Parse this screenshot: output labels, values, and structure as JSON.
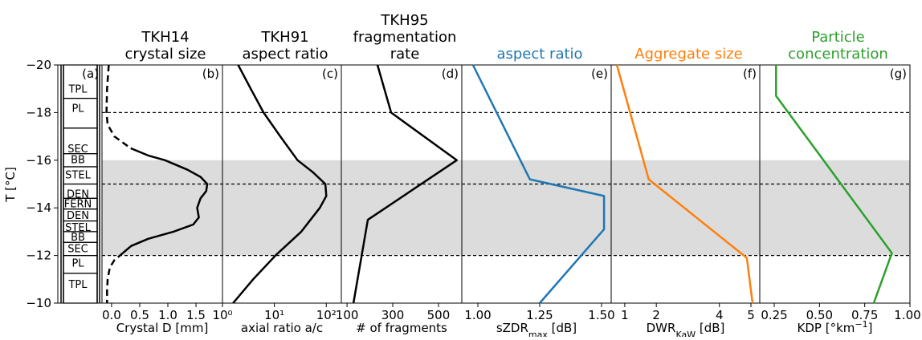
{
  "chart_data": {
    "type": "profile-panels",
    "ylabel": "T [°C]",
    "ylim": [
      -20,
      -10
    ],
    "y_inverted": true,
    "yticks": [
      {
        "value": -20,
        "label": "−20"
      },
      {
        "value": -18,
        "label": "−18"
      },
      {
        "value": -16,
        "label": "−16"
      },
      {
        "value": -14,
        "label": "−14"
      },
      {
        "value": -12,
        "label": "−12"
      },
      {
        "value": -10,
        "label": "−10"
      }
    ],
    "shading": [
      -16,
      -12
    ],
    "dashed_lines": [
      -18,
      -15,
      -12
    ],
    "panels": [
      {
        "letter": "(a)",
        "habits": {
          "labels": [
            "TPL",
            "PL",
            "SEC",
            "BB",
            "STEL",
            "DEN",
            "FERN",
            "DEN",
            "STEL",
            "BB",
            "SEC",
            "PL",
            "TPL"
          ],
          "temps": [
            -19.0,
            -18.2,
            -16.5,
            -16.05,
            -15.4,
            -14.6,
            -14.2,
            -13.7,
            -13.2,
            -12.8,
            -12.3,
            -11.7,
            -10.8
          ]
        }
      },
      {
        "letter": "(b)",
        "title": [
          "TKH14",
          "crystal size"
        ],
        "title_color": "#000000",
        "xlabel": [
          {
            "text": "Crystal D [mm]"
          }
        ],
        "xlim": [
          -0.17,
          1.97
        ],
        "xticks": [
          {
            "value": 0,
            "label": "0.0"
          },
          0.5,
          {
            "value": 1,
            "label": "1.0"
          },
          1.5
        ],
        "lines": [
          {
            "color": "#000000",
            "style": "dashed",
            "y": [
              -20,
              -19,
              -18,
              -17.5,
              -17,
              -16.5
            ],
            "values": [
              -0.05,
              -0.08,
              -0.09,
              -0.07,
              0.05,
              0.34
            ]
          },
          {
            "color": "#000000",
            "style": "solid",
            "y": [
              -16.5,
              -16.2,
              -16,
              -15.6,
              -15.3,
              -15,
              -14.7,
              -14.4,
              -14,
              -13.6,
              -13.3,
              -13,
              -12.7,
              -12.4,
              -12.1
            ],
            "values": [
              0.34,
              0.65,
              0.95,
              1.35,
              1.58,
              1.7,
              1.68,
              1.58,
              1.52,
              1.55,
              1.45,
              1.1,
              0.65,
              0.35,
              0.2
            ]
          },
          {
            "color": "#000000",
            "style": "dashed",
            "y": [
              -12.1,
              -11.8,
              -11.5,
              -11,
              -10.5,
              -10
            ],
            "values": [
              0.2,
              0.05,
              -0.03,
              -0.07,
              -0.08,
              -0.08
            ]
          }
        ]
      },
      {
        "letter": "(c)",
        "title": [
          "TKH91",
          "aspect ratio"
        ],
        "title_color": "#000000",
        "xlabel": [
          {
            "text": "axial ratio a/c"
          }
        ],
        "log": true,
        "xlim": [
          1,
          195
        ],
        "xticks": [
          {
            "value": 1,
            "label": "10⁰"
          },
          {
            "value": 10,
            "label": "10¹"
          },
          {
            "value": 100,
            "label": "10²"
          }
        ],
        "lines": [
          {
            "color": "#000000",
            "style": "solid",
            "y": [
              -20,
              -19,
              -18,
              -17,
              -16,
              -15.5,
              -15,
              -14.5,
              -14,
              -13,
              -12,
              -11,
              -10
            ],
            "values": [
              2.0,
              3.5,
              6.2,
              13,
              28,
              55,
              96,
              100,
              75,
              33,
              10.5,
              3.9,
              1.6
            ]
          }
        ]
      },
      {
        "letter": "(d)",
        "title": [
          "TKH95",
          "fragmentation",
          "rate"
        ],
        "title_color": "#000000",
        "xlabel": [
          {
            "text": "# of fragments"
          }
        ],
        "xlim": [
          75,
          602
        ],
        "xticks": [
          100,
          300,
          500
        ],
        "lines": [
          {
            "color": "#000000",
            "style": "solid",
            "y": [
              -20,
              -18,
              -16,
              -13.5,
              -10
            ],
            "values": [
              233,
              293,
              580,
              191,
              128
            ]
          }
        ]
      },
      {
        "letter": "(e)",
        "title": [
          "aspect ratio"
        ],
        "title_color": "#1f77b4",
        "xlabel": [
          {
            "text": "sZDR"
          },
          {
            "text": "max",
            "shift": "sub"
          },
          {
            "text": " [dB]"
          }
        ],
        "xlim": [
          0.935,
          1.539
        ],
        "xticks": [
          {
            "value": 1,
            "label": "1.00"
          },
          1.25,
          {
            "value": 1.5,
            "label": "1.50"
          }
        ],
        "lines": [
          {
            "color": "#1f77b4",
            "style": "solid",
            "y": [
              -20,
              -15.2,
              -14.5,
              -13.1,
              -10
            ],
            "values": [
              0.98,
              1.21,
              1.51,
              1.51,
              1.25
            ]
          }
        ]
      },
      {
        "letter": "(f)",
        "title": [
          "Aggregate size"
        ],
        "title_color": "#ff7f0e",
        "xlabel": [
          {
            "text": "DWR"
          },
          {
            "text": "KaW",
            "shift": "sub"
          },
          {
            "text": " [dB]"
          }
        ],
        "xlim": [
          0.57,
          5.28
        ],
        "xticks": [
          1,
          2,
          4,
          5
        ],
        "lines": [
          {
            "color": "#ff7f0e",
            "style": "solid",
            "y": [
              -20,
              -15.2,
              -11.9,
              -10
            ],
            "values": [
              0.75,
              1.76,
              4.87,
              5.05
            ]
          }
        ]
      },
      {
        "letter": "(g)",
        "title": [
          "Particle",
          "concentration"
        ],
        "title_color": "#2ca02c",
        "xlabel": [
          {
            "text": "KDP [°km"
          },
          {
            "text": "−1",
            "shift": "super"
          },
          {
            "text": "]"
          }
        ],
        "xlim": [
          0.17,
          1.0
        ],
        "xticks": [
          0.25,
          {
            "value": 0.5,
            "label": "0.50"
          },
          0.75,
          {
            "value": 1,
            "label": "1.00"
          }
        ],
        "lines": [
          {
            "color": "#2ca02c",
            "style": "solid",
            "y": [
              -20,
              -18.7,
              -12.1,
              -10
            ],
            "values": [
              0.26,
              0.26,
              0.9,
              0.8
            ]
          }
        ]
      }
    ]
  }
}
